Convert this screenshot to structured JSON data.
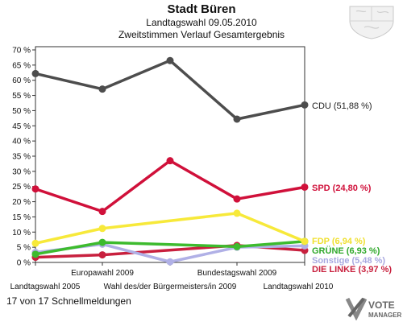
{
  "header": {
    "title": "Stadt Büren",
    "subtitle1": "Landtagswahl 09.05.2010",
    "subtitle2": "Zweitstimmen Verlauf Gesamtergebnis"
  },
  "footer": {
    "text": "17 von 17 Schnellmeldungen"
  },
  "logo": {
    "line1": "VOTE",
    "line2": "MANAGER"
  },
  "chart_data": {
    "type": "line",
    "title": "Stadt Büren",
    "subtitle": "Landtagswahl 09.05.2010 – Zweitstimmen Verlauf Gesamtergebnis",
    "categories": [
      "Landtagswahl 2005",
      "Europawahl 2009",
      "Wahl des/der Bürgermeisters/in 2009",
      "Bundestagswahl 2009",
      "Landtagswahl 2010"
    ],
    "ylim": [
      0,
      70
    ],
    "yticks": [
      "0 %",
      "5 %",
      "10 %",
      "15 %",
      "20 %",
      "25 %",
      "30 %",
      "35 %",
      "40 %",
      "45 %",
      "50 %",
      "55 %",
      "60 %",
      "65 %",
      "70 %"
    ],
    "grid": false,
    "series": [
      {
        "name": "CDU",
        "label": "CDU (51,88 %)",
        "color": "#4d4d4d",
        "values": [
          62.2,
          57.1,
          66.5,
          47.2,
          51.88
        ]
      },
      {
        "name": "SPD",
        "label": "SPD (24,80 %)",
        "color": "#d0103a",
        "values": [
          24.2,
          16.8,
          33.5,
          20.9,
          24.8
        ]
      },
      {
        "name": "FDP",
        "label": "FDP (6,94 %)",
        "color": "#f7e93a",
        "values": [
          6.3,
          11.2,
          null,
          16.2,
          6.94
        ]
      },
      {
        "name": "GRÜNE",
        "label": "GRÜNE (6,93 %)",
        "color": "#3dbb2e",
        "values": [
          2.7,
          6.6,
          null,
          5.2,
          6.93
        ]
      },
      {
        "name": "Sonstige",
        "label": "Sonstige (5,48 %)",
        "color": "#b0b0e6",
        "values": [
          3.3,
          6.0,
          0.2,
          5.0,
          5.48
        ]
      },
      {
        "name": "DIE LINKE",
        "label": "DIE LINKE (3,97 %)",
        "color": "#c8203e",
        "values": [
          1.7,
          2.5,
          null,
          5.6,
          3.97
        ]
      }
    ]
  }
}
